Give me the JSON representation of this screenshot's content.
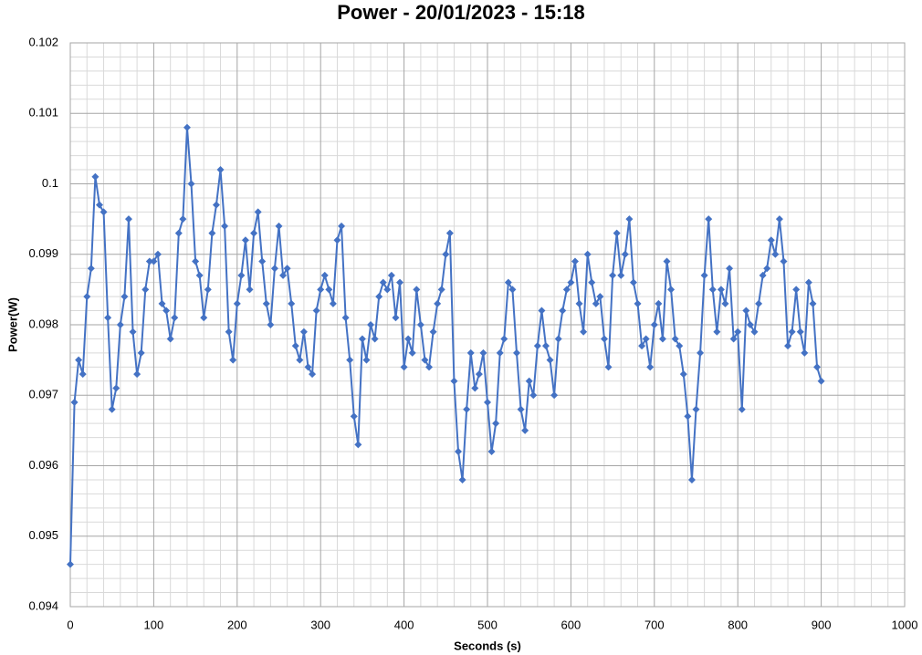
{
  "chart_data": {
    "type": "line",
    "title": "Power - 20/01/2023 - 15:18",
    "x_label": "Seconds (s)",
    "y_label": "Power(W)",
    "xlim": [
      0,
      1000
    ],
    "xticks": [
      0,
      100,
      200,
      300,
      400,
      500,
      600,
      700,
      800,
      900,
      1000
    ],
    "ylim": [
      0.094,
      0.102
    ],
    "yticks": [
      0.094,
      0.095,
      0.096,
      0.097,
      0.098,
      0.099,
      0.1,
      0.101,
      0.102
    ],
    "grid": true,
    "minor_grid": true,
    "marker": "diamond",
    "x": [
      0,
      5,
      10,
      15,
      20,
      25,
      30,
      35,
      40,
      45,
      50,
      55,
      60,
      65,
      70,
      75,
      80,
      85,
      90,
      95,
      100,
      105,
      110,
      115,
      120,
      125,
      130,
      135,
      140,
      145,
      150,
      155,
      160,
      165,
      170,
      175,
      180,
      185,
      190,
      195,
      200,
      205,
      210,
      215,
      220,
      225,
      230,
      235,
      240,
      245,
      250,
      255,
      260,
      265,
      270,
      275,
      280,
      285,
      290,
      295,
      300,
      305,
      310,
      315,
      320,
      325,
      330,
      335,
      340,
      345,
      350,
      355,
      360,
      365,
      370,
      375,
      380,
      385,
      390,
      395,
      400,
      405,
      410,
      415,
      420,
      425,
      430,
      435,
      440,
      445,
      450,
      455,
      460,
      465,
      470,
      475,
      480,
      485,
      490,
      495,
      500,
      505,
      510,
      515,
      520,
      525,
      530,
      535,
      540,
      545,
      550,
      555,
      560,
      565,
      570,
      575,
      580,
      585,
      590,
      595,
      600,
      605,
      610,
      615,
      620,
      625,
      630,
      635,
      640,
      645,
      650,
      655,
      660,
      665,
      670,
      675,
      680,
      685,
      690,
      695,
      700,
      705,
      710,
      715,
      720,
      725,
      730,
      735,
      740,
      745,
      750,
      755,
      760,
      765,
      770,
      775,
      780,
      785,
      790,
      795,
      800,
      805,
      810,
      815,
      820,
      825,
      830,
      835,
      840,
      845,
      850,
      855,
      860,
      865,
      870,
      875,
      880,
      885,
      890,
      895,
      900
    ],
    "series": [
      {
        "name": "Power",
        "color": "#4472c4",
        "values": [
          0.0946,
          0.0969,
          0.0975,
          0.0973,
          0.0984,
          0.0988,
          0.1001,
          0.0997,
          0.0996,
          0.0981,
          0.0968,
          0.0971,
          0.098,
          0.0984,
          0.0995,
          0.0979,
          0.0973,
          0.0976,
          0.0985,
          0.0989,
          0.0989,
          0.099,
          0.0983,
          0.0982,
          0.0978,
          0.0981,
          0.0993,
          0.0995,
          0.1008,
          0.1,
          0.0989,
          0.0987,
          0.0981,
          0.0985,
          0.0993,
          0.0997,
          0.1002,
          0.0994,
          0.0979,
          0.0975,
          0.0983,
          0.0987,
          0.0992,
          0.0985,
          0.0993,
          0.0996,
          0.0989,
          0.0983,
          0.098,
          0.0988,
          0.0994,
          0.0987,
          0.0988,
          0.0983,
          0.0977,
          0.0975,
          0.0979,
          0.0974,
          0.0973,
          0.0982,
          0.0985,
          0.0987,
          0.0985,
          0.0983,
          0.0992,
          0.0994,
          0.0981,
          0.0975,
          0.0967,
          0.0963,
          0.0978,
          0.0975,
          0.098,
          0.0978,
          0.0984,
          0.0986,
          0.0985,
          0.0987,
          0.0981,
          0.0986,
          0.0974,
          0.0978,
          0.0976,
          0.0985,
          0.098,
          0.0975,
          0.0974,
          0.0979,
          0.0983,
          0.0985,
          0.099,
          0.0993,
          0.0972,
          0.0962,
          0.0958,
          0.0968,
          0.0976,
          0.0971,
          0.0973,
          0.0976,
          0.0969,
          0.0962,
          0.0966,
          0.0976,
          0.0978,
          0.0986,
          0.0985,
          0.0976,
          0.0968,
          0.0965,
          0.0972,
          0.097,
          0.0977,
          0.0982,
          0.0977,
          0.0975,
          0.097,
          0.0978,
          0.0982,
          0.0985,
          0.0986,
          0.0989,
          0.0983,
          0.0979,
          0.099,
          0.0986,
          0.0983,
          0.0984,
          0.0978,
          0.0974,
          0.0987,
          0.0993,
          0.0987,
          0.099,
          0.0995,
          0.0986,
          0.0983,
          0.0977,
          0.0978,
          0.0974,
          0.098,
          0.0983,
          0.0978,
          0.0989,
          0.0985,
          0.0978,
          0.0977,
          0.0973,
          0.0967,
          0.0958,
          0.0968,
          0.0976,
          0.0987,
          0.0995,
          0.0985,
          0.0979,
          0.0985,
          0.0983,
          0.0988,
          0.0978,
          0.0979,
          0.0968,
          0.0982,
          0.098,
          0.0979,
          0.0983,
          0.0987,
          0.0988,
          0.0992,
          0.099,
          0.0995,
          0.0989,
          0.0977,
          0.0979,
          0.0985,
          0.0979,
          0.0976,
          0.0986,
          0.0983,
          0.0974,
          0.0972
        ]
      }
    ]
  }
}
